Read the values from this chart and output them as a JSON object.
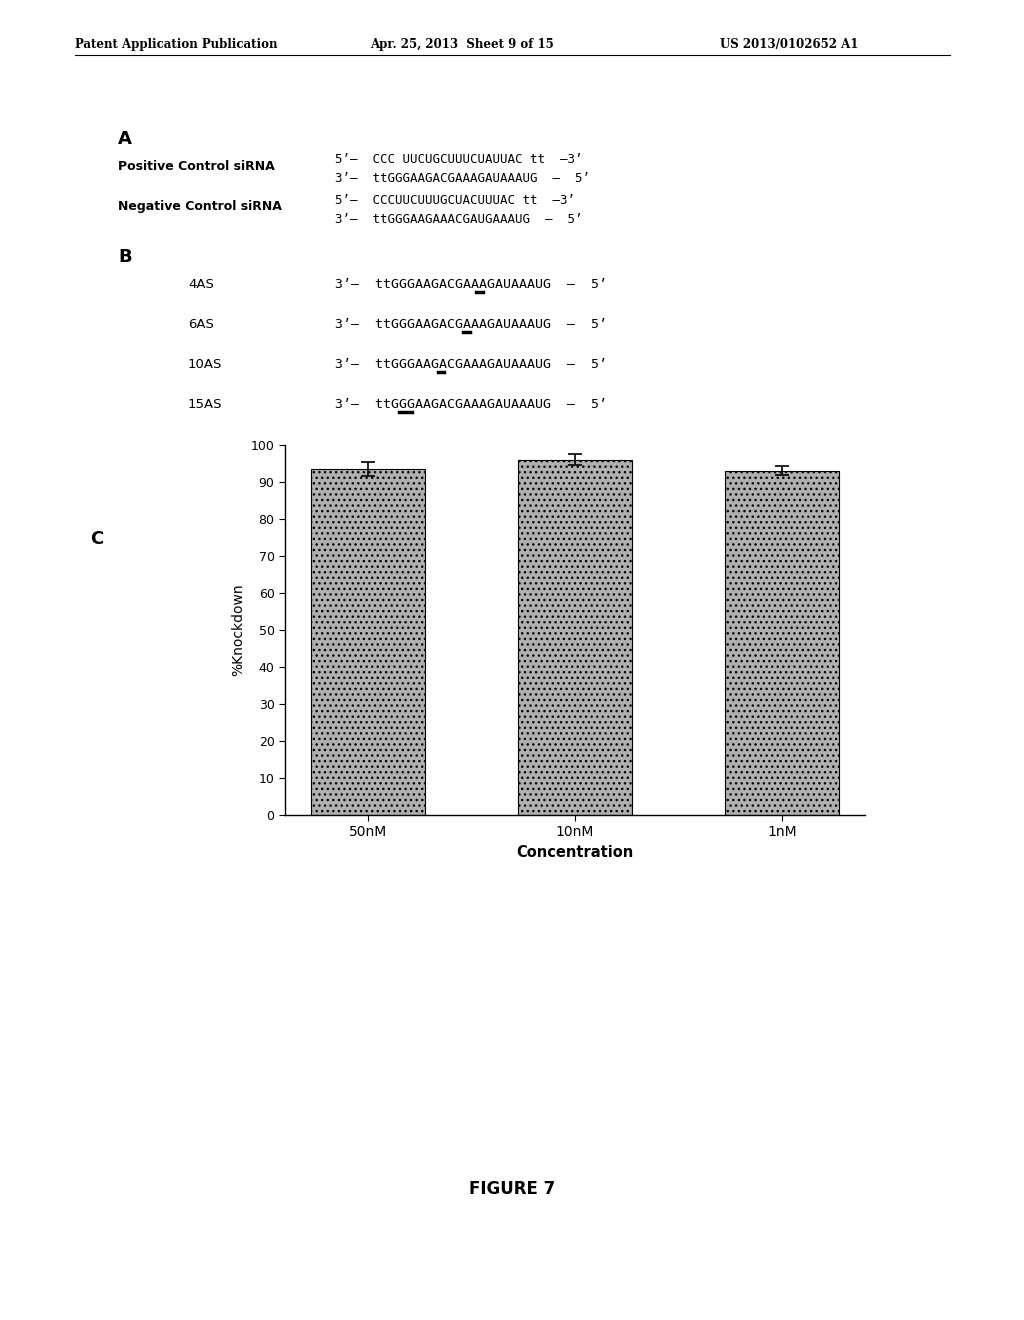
{
  "header_left": "Patent Application Publication",
  "header_mid": "Apr. 25, 2013  Sheet 9 of 15",
  "header_right": "US 2013/0102652 A1",
  "section_A_label": "A",
  "pos_control_label": "Positive Control siRNA",
  "pos_control_line1": "5’–  CCC UUCUGCUUUCUAUUAC tt  –3’",
  "pos_control_line2": "3’–  ttGGGAAGACGAAAGAUAAAUG  –  5’",
  "neg_control_label": "Negative Control siRNA",
  "neg_control_line1": "5’–  CCCUUCUUUGCUACUUUAC tt  –3’",
  "neg_control_line2": "3’–  ttGGGAAGAAACGAUGAAAUG  –  5’",
  "section_B_label": "B",
  "seq_4AS_label": "4AS",
  "seq_4AS_full": "3’–  ttGGGAAGACGAAAGAUAAAUG  –  5’",
  "seq_6AS_label": "6AS",
  "seq_6AS_full": "3’–  ttGGGAAGACGAAAGAUAAAUG  –  5’",
  "seq_10AS_label": "10AS",
  "seq_10AS_full": "3’–  ttGGGAAGACGAAAGAUAAAUG  –  5’",
  "seq_15AS_label": "15AS",
  "seq_15AS_full": "3’–  ttGGGAAGACGAAAGAUAAAUG  –  5’",
  "section_C_label": "C",
  "bar_categories": [
    "50nM",
    "10nM",
    "1nM"
  ],
  "bar_values": [
    93.5,
    96.0,
    93.0
  ],
  "bar_errors": [
    1.8,
    1.5,
    1.2
  ],
  "bar_color": "#b0b0b0",
  "ylabel": "%Knockdown",
  "xlabel": "Concentration",
  "ylim": [
    0,
    100
  ],
  "yticks": [
    0,
    10,
    20,
    30,
    40,
    50,
    60,
    70,
    80,
    90,
    100
  ],
  "figure_caption": "FIGURE 7",
  "background_color": "#ffffff"
}
